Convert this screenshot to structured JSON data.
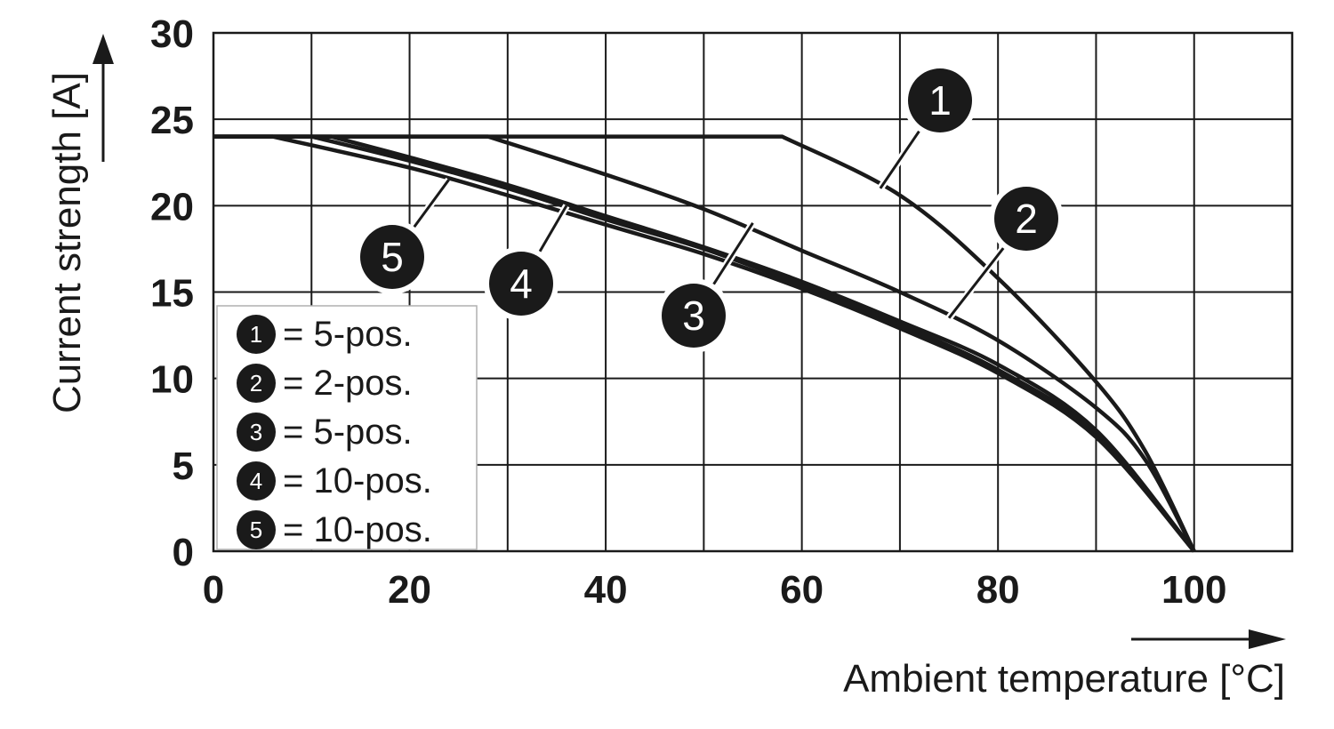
{
  "chart_data": {
    "type": "line",
    "xlabel": "Ambient temperature [°C]",
    "ylabel": "Current strength [A]",
    "xlim": [
      0,
      110
    ],
    "ylim": [
      0,
      30
    ],
    "x_ticks": [
      "0",
      "20",
      "40",
      "60",
      "80",
      "100"
    ],
    "y_ticks": [
      "0",
      "5",
      "10",
      "15",
      "20",
      "25",
      "30"
    ],
    "grid": true,
    "legend_position": "bottom-left",
    "legend": [
      {
        "marker": "1",
        "text": "= 5-pos."
      },
      {
        "marker": "2",
        "text": "= 2-pos."
      },
      {
        "marker": "3",
        "text": "= 5-pos."
      },
      {
        "marker": "4",
        "text": "= 10-pos."
      },
      {
        "marker": "5",
        "text": "= 10-pos."
      }
    ],
    "series": [
      {
        "name": "1",
        "x": [
          0,
          58,
          70,
          80,
          90,
          95,
          100
        ],
        "y": [
          24,
          24,
          20.6,
          15.8,
          9.8,
          5.8,
          0
        ]
      },
      {
        "name": "2",
        "x": [
          0,
          28,
          40,
          50,
          60,
          70,
          80,
          90,
          95,
          100
        ],
        "y": [
          24,
          24,
          21.8,
          19.8,
          17.4,
          15,
          12.2,
          8.3,
          5.3,
          0
        ]
      },
      {
        "name": "3",
        "x": [
          0,
          12,
          20,
          30,
          40,
          50,
          60,
          70,
          80,
          90,
          100
        ],
        "y": [
          24,
          24,
          22.8,
          21.2,
          19.4,
          17.6,
          15.6,
          13.3,
          10.8,
          7,
          0
        ]
      },
      {
        "name": "4",
        "x": [
          0,
          10,
          20,
          30,
          40,
          50,
          60,
          70,
          80,
          90,
          100
        ],
        "y": [
          24,
          24,
          22.6,
          21,
          19.2,
          17.5,
          15.4,
          13.1,
          10.5,
          6.8,
          0
        ]
      },
      {
        "name": "5",
        "x": [
          0,
          6,
          20,
          30,
          40,
          50,
          60,
          70,
          80,
          90,
          100
        ],
        "y": [
          24,
          24,
          22.2,
          20.6,
          18.9,
          17.2,
          15.2,
          12.9,
          10.3,
          6.6,
          0
        ]
      }
    ],
    "callouts": [
      {
        "label": "1",
        "point": [
          68,
          21
        ]
      },
      {
        "label": "2",
        "point": [
          75,
          13.5
        ]
      },
      {
        "label": "3",
        "point": [
          55,
          19
        ]
      },
      {
        "label": "4",
        "point": [
          36,
          20
        ]
      },
      {
        "label": "5",
        "point": [
          24,
          21.5
        ]
      }
    ]
  }
}
